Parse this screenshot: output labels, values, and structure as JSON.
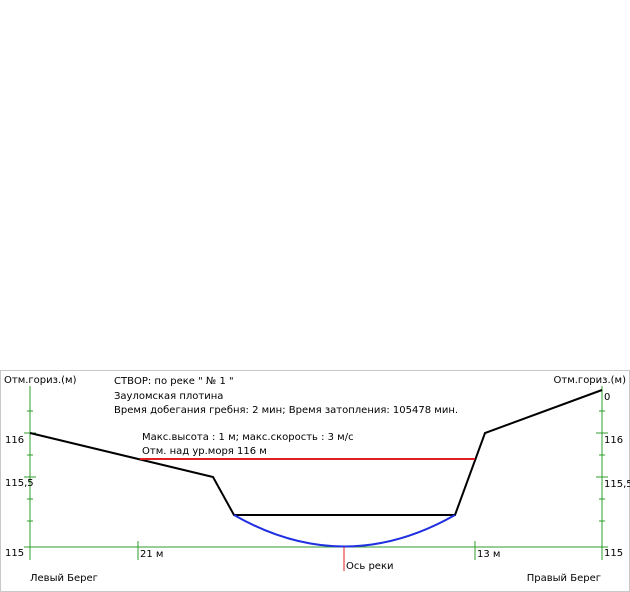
{
  "header": {
    "title": "СТВОР: по реке \" № 1 \"",
    "dam": "Зауломская плотина",
    "times": "Время добегания гребня: 2 мин; Время затопления: 105478 мин."
  },
  "wave": {
    "params": "Макс.высота : 1 м; макс.скорость : 3 м/с",
    "elevation": "Отм. над ур.моря 116 м"
  },
  "left_axis": {
    "title": "Отм.гориз.(м)",
    "ticks": [
      "116",
      "115,5",
      "115"
    ]
  },
  "right_axis": {
    "title": "Отм.гориз.(м)",
    "ticks": [
      "0",
      "116",
      "115,5",
      "115"
    ]
  },
  "markers": {
    "left_distance": "21 м",
    "right_distance": "13 м",
    "river_axis": "Ось реки"
  },
  "banks": {
    "left": "Левый Берег",
    "right": "Правый Берег"
  }
}
